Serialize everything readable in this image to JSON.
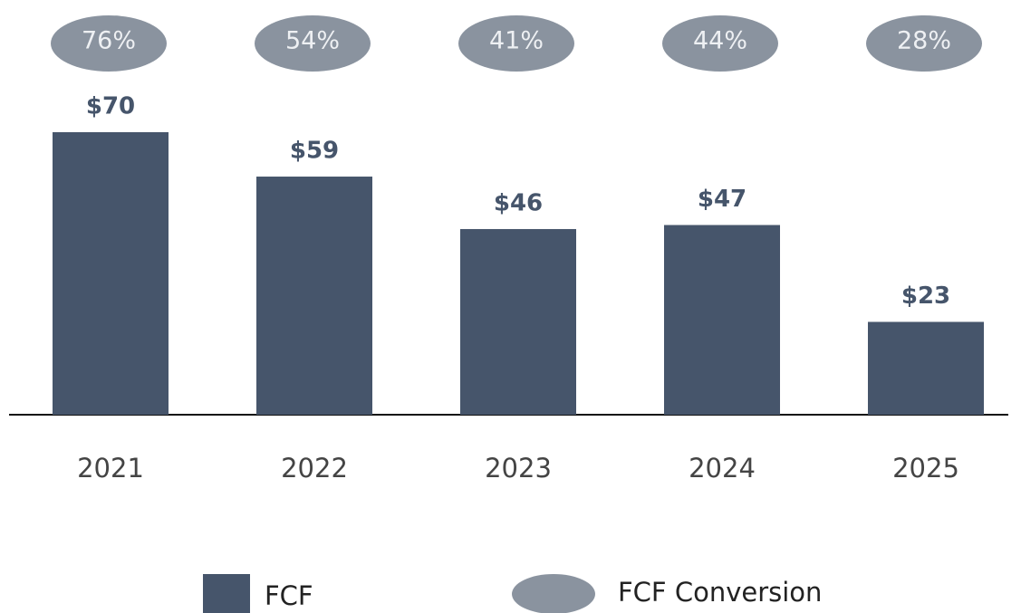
{
  "chart_data": {
    "type": "bar",
    "categories": [
      "2021",
      "2022",
      "2023",
      "2024",
      "2025"
    ],
    "series": [
      {
        "name": "FCF",
        "color": "#46556b",
        "values": [
          70,
          59,
          46,
          47,
          23
        ],
        "value_labels": [
          "$70",
          "$59",
          "$46",
          "$47",
          "$23"
        ]
      },
      {
        "name": "FCF Conversion",
        "color": "#8a939f",
        "values": [
          76,
          54,
          41,
          44,
          28
        ],
        "value_labels": [
          "76%",
          "54%",
          "41%",
          "44%",
          "28%"
        ]
      }
    ]
  }
}
